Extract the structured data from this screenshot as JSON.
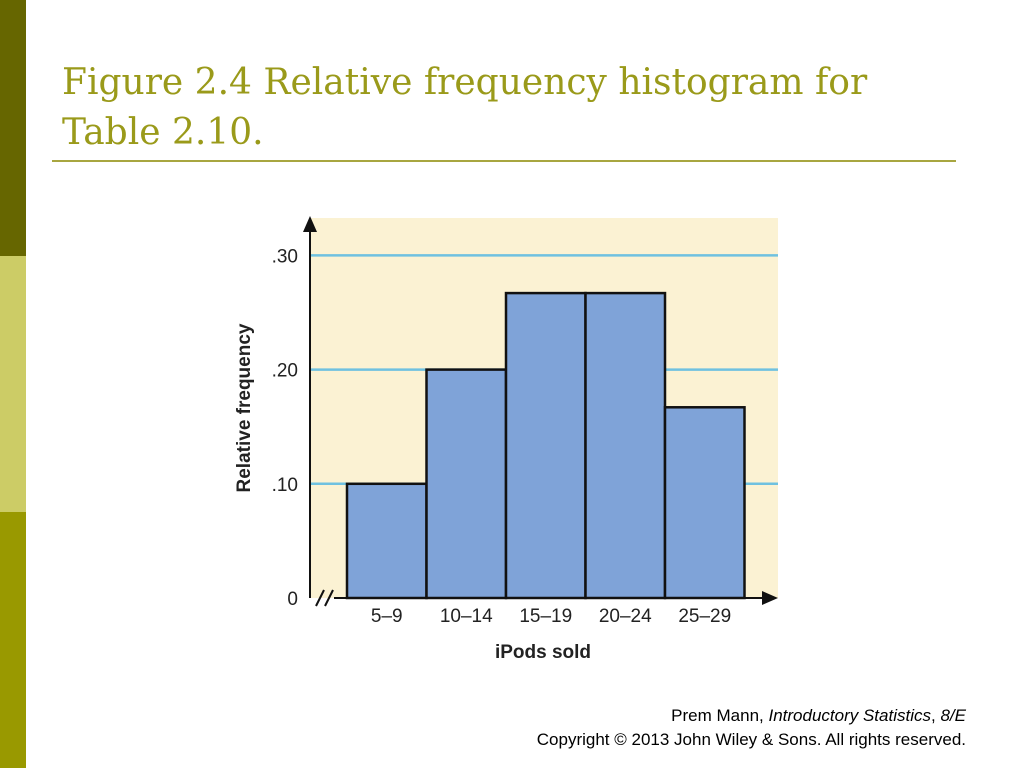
{
  "slide": {
    "title": "Figure 2.4 Relative frequency histogram for Table 2.10.",
    "accent_colors": {
      "dark": "#666600",
      "light": "#cccc66",
      "mid": "#999900"
    }
  },
  "credits": {
    "author": "Prem Mann,",
    "book": "Introductory Statistics",
    "sep": ",",
    "edition": "8/E",
    "copyright": "Copyright © 2013 John Wiley & Sons. All rights reserved."
  },
  "chart_data": {
    "type": "bar",
    "categories": [
      "5–9",
      "10–14",
      "15–19",
      "20–24",
      "25–29"
    ],
    "values": [
      0.1,
      0.2,
      0.267,
      0.267,
      0.167
    ],
    "xlabel": "iPods sold",
    "ylabel": "Relative frequency",
    "ylim": [
      0,
      0.33
    ],
    "yticks": [
      0,
      0.1,
      0.2,
      0.3
    ],
    "ytick_labels": [
      "0",
      ".10",
      ".20",
      ".30"
    ],
    "grid": true,
    "colors": {
      "bar": "#7fa3d8",
      "grid": "#6fc1e0",
      "panel": "#fbf2d3",
      "outline": "#111111"
    }
  }
}
